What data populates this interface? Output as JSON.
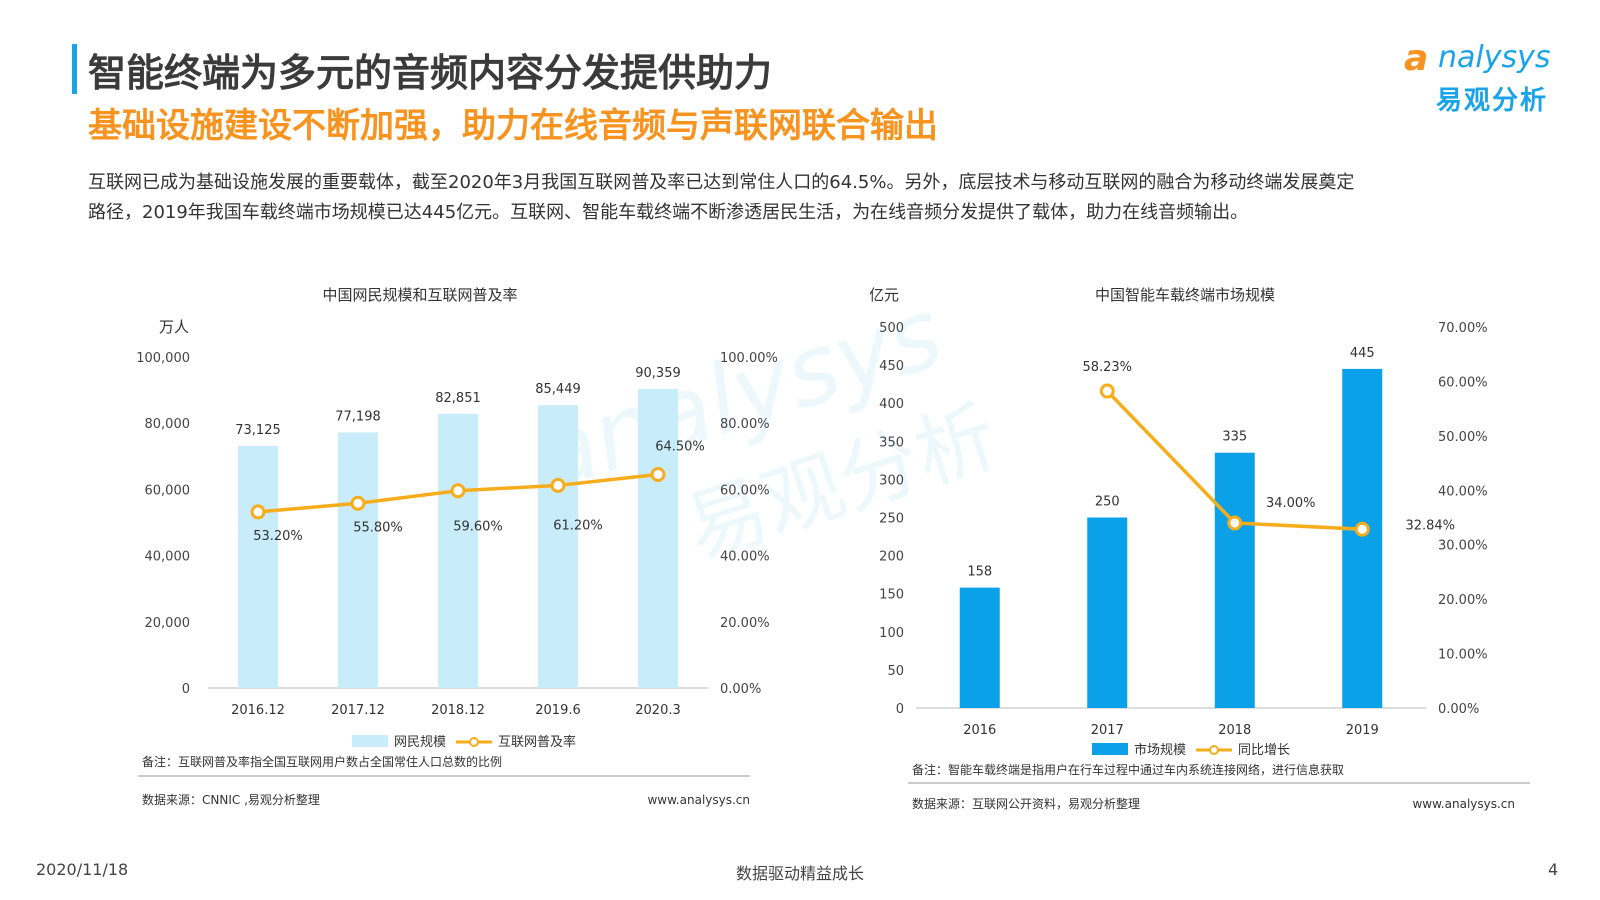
{
  "header": {
    "title": "智能终端为多元的音频内容分发提供助力",
    "subtitle": "基础设施建设不断加强，助力在线音频与声联网联合输出",
    "logo_text": "nalysys",
    "logo_letter": "a",
    "logo_cn": "易观分析"
  },
  "body": {
    "line1": "互联网已成为基础设施发展的重要载体，截至2020年3月我国互联网普及率已达到常住人口的64.5%。另外，底层技术与移动互联网的融合为移动终端发展奠定",
    "line2": "路径，2019年我国车载终端市场规模已达445亿元。互联网、智能车载终端不断渗透居民生活，为在线音频分发提供了载体，助力在线音频输出。"
  },
  "watermark": {
    "text_en": "analysys",
    "text_cn": "易观分析"
  },
  "chart_data": [
    {
      "type": "bar",
      "title": "中国网民规模和互联网普及率",
      "ylabel": "万人",
      "categories": [
        "2016.12",
        "2017.12",
        "2018.12",
        "2019.6",
        "2020.3"
      ],
      "series": [
        {
          "name": "网民规模",
          "type": "bar",
          "values": [
            73125,
            77198,
            82851,
            85449,
            90359
          ],
          "labels": [
            "73,125",
            "77,198",
            "82,851",
            "85,449",
            "90,359"
          ],
          "color": "#c9ecfb"
        },
        {
          "name": "互联网普及率",
          "type": "line",
          "axis": "right",
          "values": [
            53.2,
            55.8,
            59.6,
            61.2,
            64.5
          ],
          "labels": [
            "53.20%",
            "55.80%",
            "59.60%",
            "61.20%",
            "64.50%"
          ],
          "color": "#f7ad1b"
        }
      ],
      "ylim": [
        0,
        100000
      ],
      "y_ticks": [
        "0",
        "20,000",
        "40,000",
        "60,000",
        "80,000",
        "100,000"
      ],
      "y2lim": [
        0,
        100
      ],
      "y2_ticks": [
        "0.00%",
        "20.00%",
        "40.00%",
        "60.00%",
        "80.00%",
        "100.00%"
      ],
      "note": "备注：互联网普及率指全国互联网用户数占全国常住人口总数的比例",
      "source": "数据来源：CNNIC ,易观分析整理",
      "url": "www.analysys.cn"
    },
    {
      "type": "bar",
      "title": "中国智能车载终端市场规模",
      "ylabel": "亿元",
      "categories": [
        "2016",
        "2017",
        "2018",
        "2019"
      ],
      "series": [
        {
          "name": "市场规模",
          "type": "bar",
          "values": [
            158,
            250,
            335,
            445
          ],
          "labels": [
            "158",
            "250",
            "335",
            "445"
          ],
          "color": "#0aa1e8"
        },
        {
          "name": "同比增长",
          "type": "line",
          "axis": "right",
          "values": [
            null,
            58.23,
            34.0,
            32.84
          ],
          "labels": [
            "",
            "58.23%",
            "34.00%",
            "32.84%"
          ],
          "color": "#f7ad1b"
        }
      ],
      "ylim": [
        0,
        500
      ],
      "y_ticks": [
        "0",
        "50",
        "100",
        "150",
        "200",
        "250",
        "300",
        "350",
        "400",
        "450",
        "500"
      ],
      "y2lim": [
        0,
        70
      ],
      "y2_ticks": [
        "0.00%",
        "10.00%",
        "20.00%",
        "30.00%",
        "40.00%",
        "50.00%",
        "60.00%",
        "70.00%"
      ],
      "note": "备注：智能车载终端是指用户在行车过程中通过车内系统连接网络，进行信息获取",
      "source": "数据来源：互联网公开资料，易观分析整理",
      "url": "www.analysys.cn"
    }
  ],
  "footer": {
    "date": "2020/11/18",
    "slogan": "数据驱动精益成长",
    "page": "4"
  }
}
